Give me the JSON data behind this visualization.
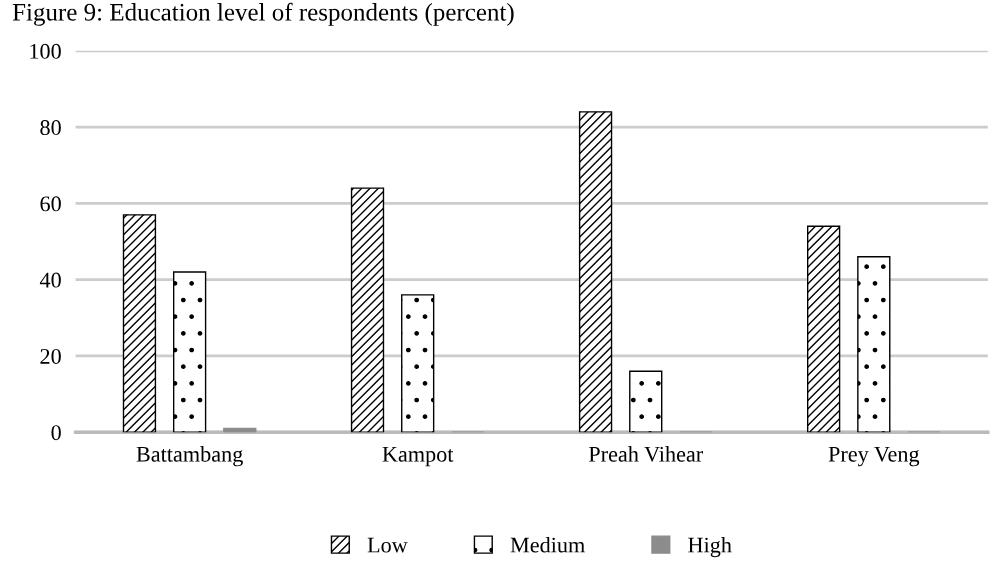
{
  "chart_data": {
    "type": "bar",
    "title": "Figure 9: Education level of respondents (percent)",
    "categories": [
      "Battambang",
      "Kampot",
      "Preah Vihear",
      "Prey Veng"
    ],
    "series": [
      {
        "name": "Low",
        "color": "#000000",
        "values": [
          57,
          64,
          84,
          54
        ]
      },
      {
        "name": "Medium",
        "color": "#000000",
        "values": [
          42,
          36,
          16,
          46
        ]
      },
      {
        "name": "High",
        "color": "#8c8c8c",
        "values": [
          1,
          0,
          0,
          0
        ]
      }
    ],
    "ylim": [
      0,
      100
    ],
    "yticks": [
      0,
      20,
      40,
      60,
      80,
      100
    ],
    "grid": "y",
    "legend": "bottom"
  }
}
